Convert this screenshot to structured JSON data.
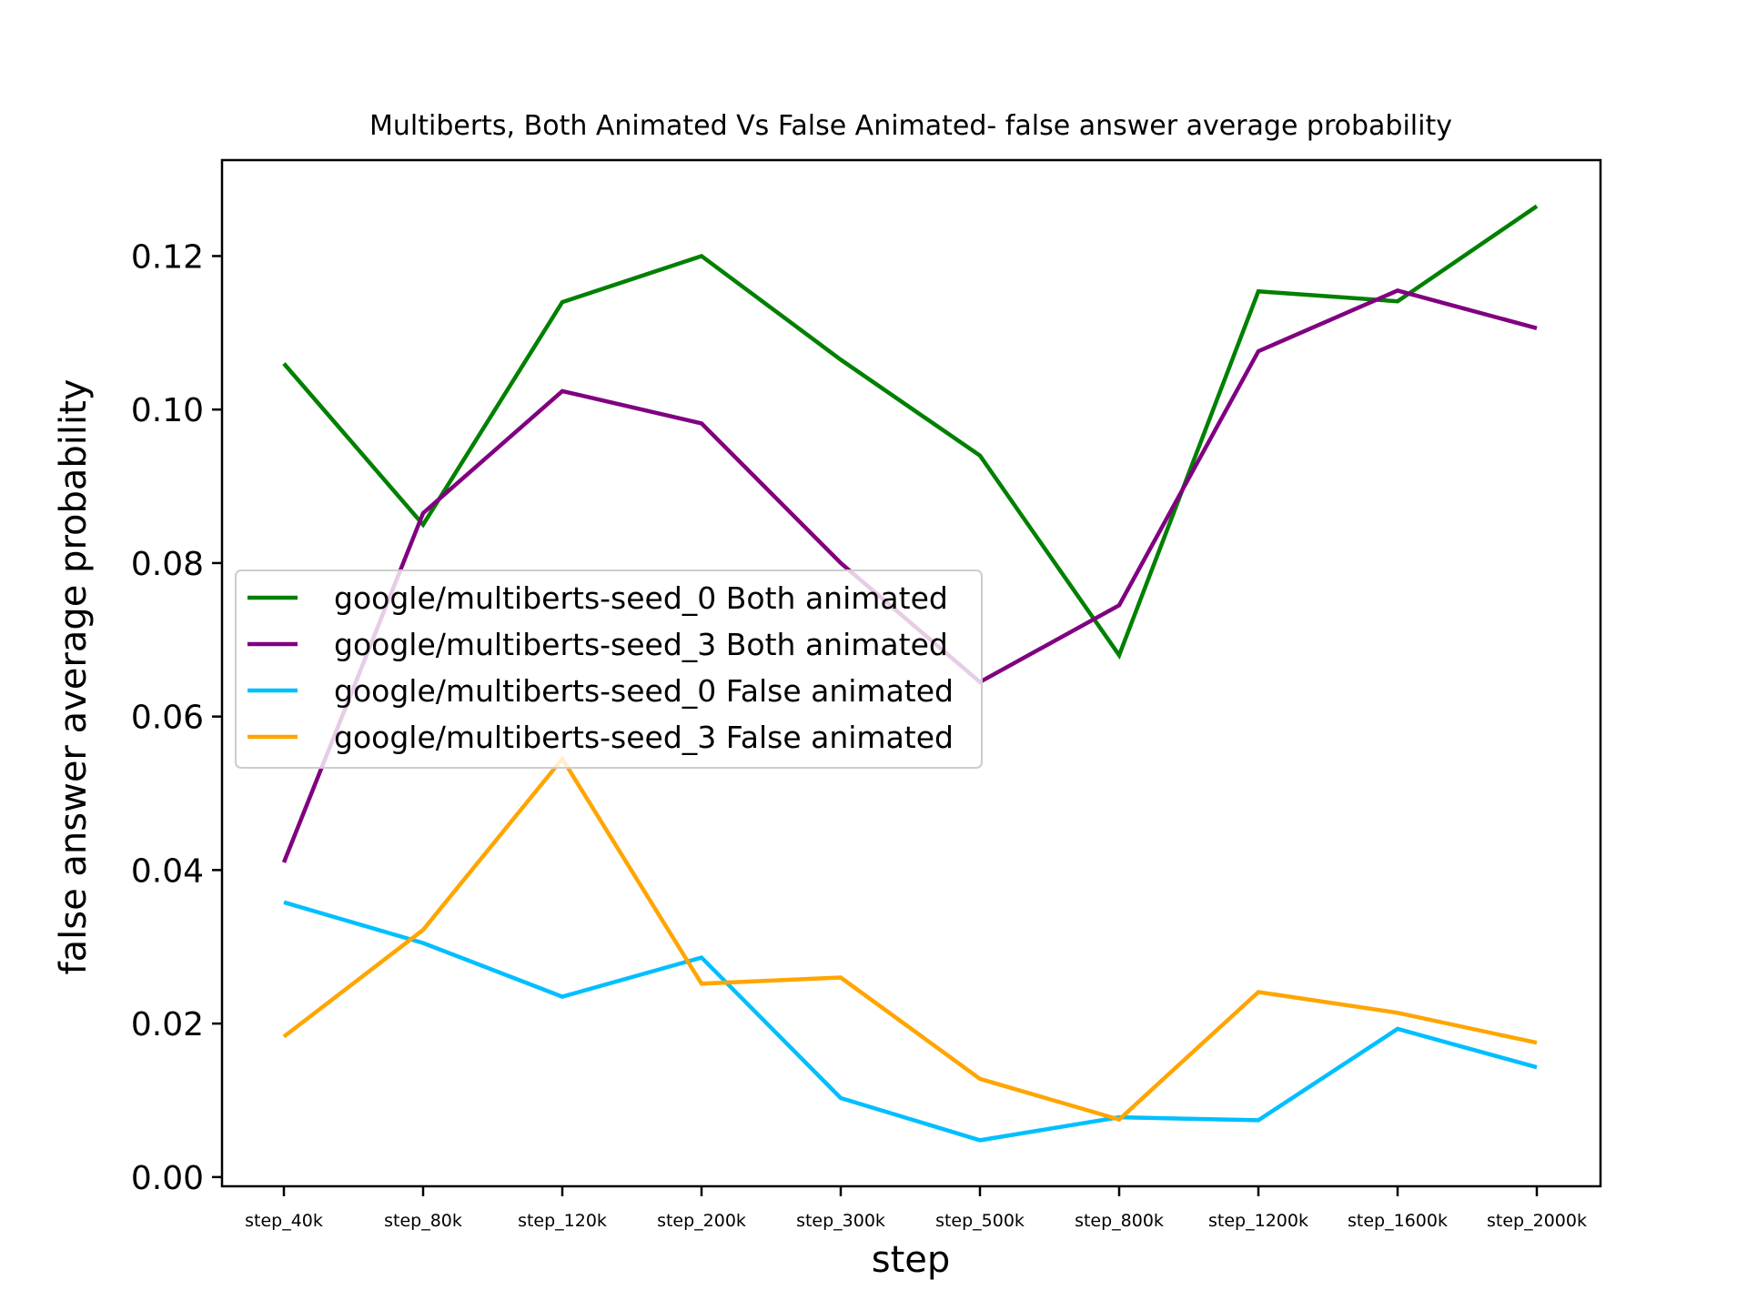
{
  "chart_data": {
    "type": "line",
    "title": "Multiberts, Both Animated Vs False Animated- false answer average probability",
    "xlabel": "step",
    "ylabel": "false answer average probability",
    "categories": [
      "step_40k",
      "step_80k",
      "step_120k",
      "step_200k",
      "step_300k",
      "step_500k",
      "step_800k",
      "step_1200k",
      "step_1600k",
      "step_2000k"
    ],
    "ylim": [
      -0.0012,
      0.1325
    ],
    "yticks": [
      0.0,
      0.02,
      0.04,
      0.06,
      0.08,
      0.1,
      0.12
    ],
    "ytick_labels": [
      "0.00",
      "0.02",
      "0.04",
      "0.06",
      "0.08",
      "0.10",
      "0.12"
    ],
    "grid": false,
    "legend_position": "center-left",
    "series": [
      {
        "name": "google/multiberts-seed_0 Both animated",
        "color": "#008000",
        "values": [
          0.106,
          0.085,
          0.114,
          0.12,
          0.1065,
          0.094,
          0.068,
          0.1154,
          0.1141,
          0.1265
        ]
      },
      {
        "name": "google/multiberts-seed_3 Both animated",
        "color": "#800080",
        "values": [
          0.041,
          0.0865,
          0.1024,
          0.0982,
          0.08,
          0.0645,
          0.0745,
          0.1076,
          0.1155,
          0.1106
        ]
      },
      {
        "name": "google/multiberts-seed_0 False animated",
        "color": "#00bfff",
        "values": [
          0.0358,
          0.0305,
          0.0235,
          0.0286,
          0.0103,
          0.0048,
          0.0078,
          0.0074,
          0.0193,
          0.0143
        ]
      },
      {
        "name": "google/multiberts-seed_3 False animated",
        "color": "#ffa500",
        "values": [
          0.0183,
          0.0322,
          0.0545,
          0.0252,
          0.026,
          0.0128,
          0.0075,
          0.0241,
          0.0214,
          0.0175
        ]
      }
    ]
  }
}
